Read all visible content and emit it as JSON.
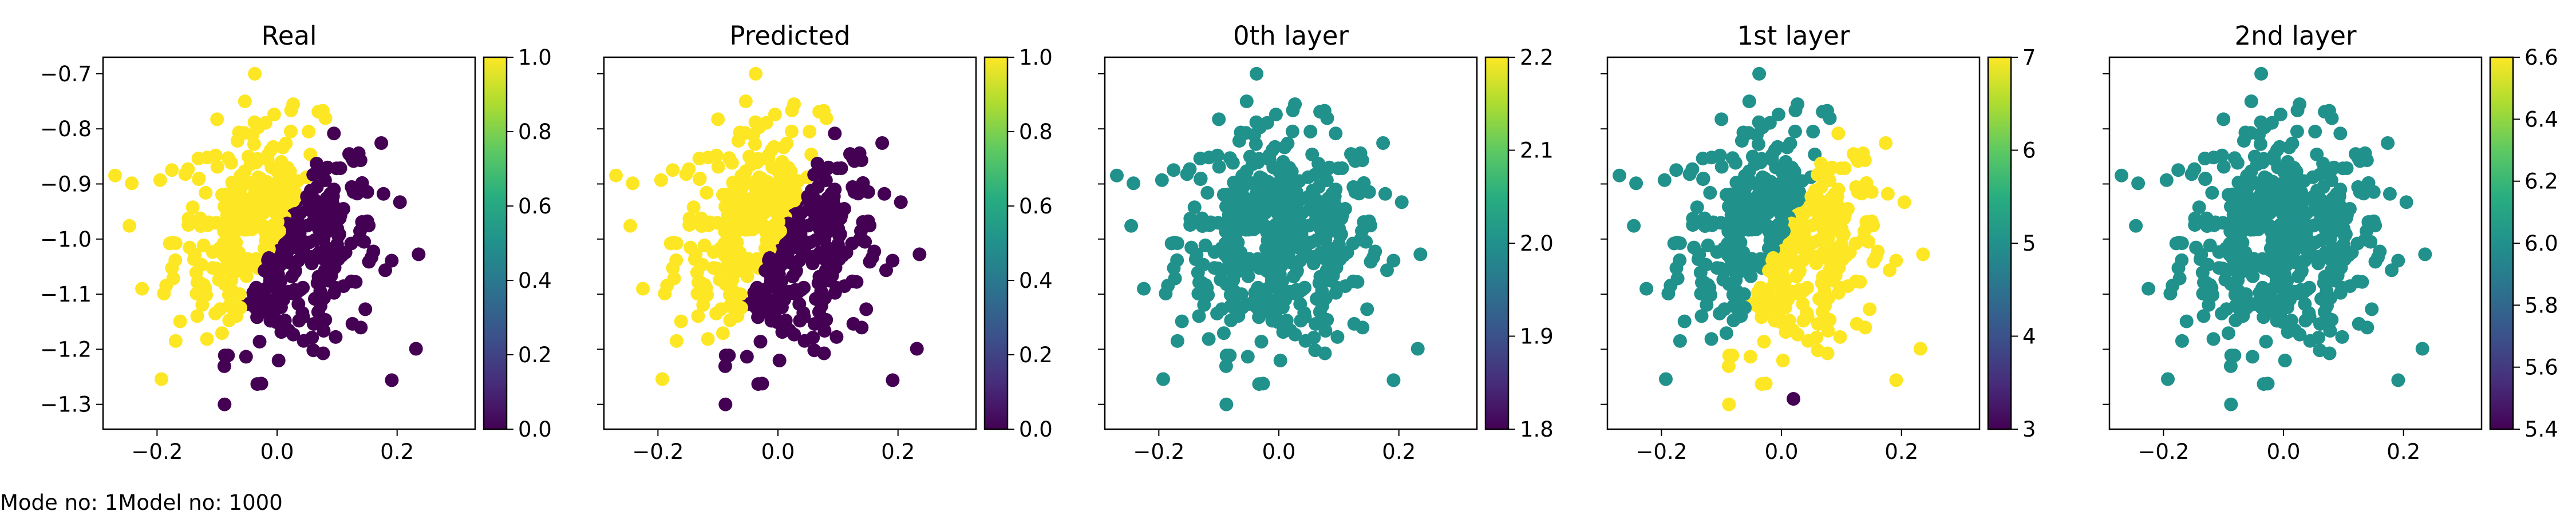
{
  "footer": "Mode no: 1Model no: 1000",
  "chart_data": [
    {
      "type": "scatter",
      "title": "Real",
      "xlim": [
        -0.29,
        0.33
      ],
      "ylim": [
        -1.345,
        -0.67
      ],
      "xticks": [
        -0.2,
        0.0,
        0.2
      ],
      "yticks": [
        -1.3,
        -1.2,
        -1.1,
        -1.0,
        -0.9,
        -0.8,
        -0.7
      ],
      "colorbar": {
        "range": [
          0,
          1
        ],
        "ticks": [
          0.0,
          0.2,
          0.4,
          0.6,
          0.8,
          1.0
        ],
        "colormap": "viridis"
      },
      "point_color_rule": "binary_split",
      "legend": "none",
      "grid": false
    },
    {
      "type": "scatter",
      "title": "Predicted",
      "xlim": [
        -0.29,
        0.33
      ],
      "ylim": [
        -1.345,
        -0.67
      ],
      "xticks": [
        -0.2,
        0.0,
        0.2
      ],
      "yticks": [
        -1.3,
        -1.2,
        -1.1,
        -1.0,
        -0.9,
        -0.8,
        -0.7
      ],
      "colorbar": {
        "range": [
          0,
          1
        ],
        "ticks": [
          0.0,
          0.2,
          0.4,
          0.6,
          0.8,
          1.0
        ],
        "colormap": "viridis"
      },
      "point_color_rule": "binary_split",
      "legend": "none",
      "grid": false
    },
    {
      "type": "scatter",
      "title": "0th layer",
      "xlim": [
        -0.29,
        0.33
      ],
      "ylim": [
        -1.345,
        -0.67
      ],
      "xticks": [
        -0.2,
        0.0,
        0.2
      ],
      "yticks": [
        -1.3,
        -1.2,
        -1.1,
        -1.0,
        -0.9,
        -0.8,
        -0.7
      ],
      "colorbar": {
        "range": [
          1.8,
          2.2
        ],
        "ticks": [
          1.8,
          1.9,
          2.0,
          2.1,
          2.2
        ],
        "colormap": "viridis"
      },
      "point_color_rule": "constant_2.0",
      "legend": "none",
      "grid": false
    },
    {
      "type": "scatter",
      "title": "1st layer",
      "xlim": [
        -0.29,
        0.33
      ],
      "ylim": [
        -1.345,
        -0.67
      ],
      "xticks": [
        -0.2,
        0.0,
        0.2
      ],
      "yticks": [
        -1.3,
        -1.2,
        -1.1,
        -1.0,
        -0.9,
        -0.8,
        -0.7
      ],
      "colorbar": {
        "range": [
          3,
          7
        ],
        "ticks": [
          3,
          4,
          5,
          6,
          7
        ],
        "colormap": "viridis"
      },
      "point_color_rule": "5_or_7_with_outliers",
      "legend": "none",
      "grid": false
    },
    {
      "type": "scatter",
      "title": "2nd layer",
      "xlim": [
        -0.29,
        0.33
      ],
      "ylim": [
        -1.345,
        -0.67
      ],
      "xticks": [
        -0.2,
        0.0,
        0.2
      ],
      "yticks": [
        -1.3,
        -1.2,
        -1.1,
        -1.0,
        -0.9,
        -0.8,
        -0.7
      ],
      "colorbar": {
        "range": [
          5.4,
          6.6
        ],
        "ticks": [
          5.4,
          5.6,
          5.8,
          6.0,
          6.2,
          6.4,
          6.6
        ],
        "colormap": "viridis"
      },
      "point_color_rule": "constant_6.0",
      "legend": "none",
      "grid": false
    }
  ]
}
